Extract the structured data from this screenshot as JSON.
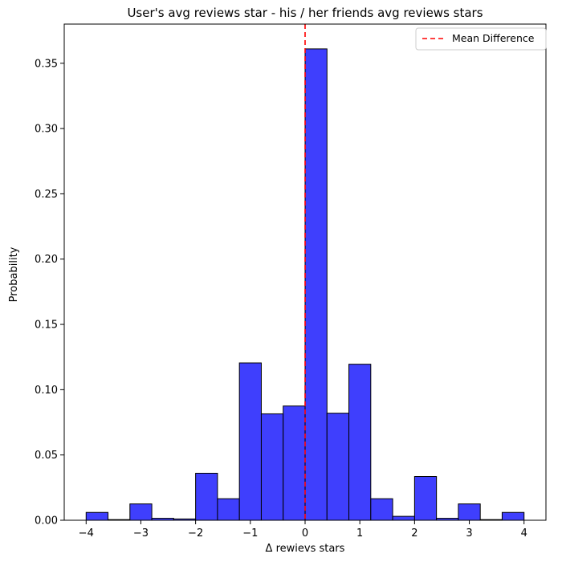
{
  "chart_data": {
    "type": "bar",
    "title": "User's avg reviews star - his / her friends avg reviews stars",
    "xlabel": "Δ rewievs stars",
    "ylabel": "Probability",
    "xlim": [
      -4.4,
      4.4
    ],
    "ylim": [
      0,
      0.38
    ],
    "xticks": [
      -4,
      -3,
      -2,
      -1,
      0,
      1,
      2,
      3,
      4
    ],
    "xtick_labels": [
      "−4",
      "−3",
      "−2",
      "−1",
      "0",
      "1",
      "2",
      "3",
      "4"
    ],
    "yticks": [
      0.0,
      0.05,
      0.1,
      0.15,
      0.2,
      0.25,
      0.3,
      0.35
    ],
    "ytick_labels": [
      "0.00",
      "0.05",
      "0.10",
      "0.15",
      "0.20",
      "0.25",
      "0.30",
      "0.35"
    ],
    "grid": false,
    "bar_color": "#3f3ffd",
    "bar_edge_color": "#000000",
    "bins": [
      {
        "x0": -4.0,
        "x1": -3.6,
        "value": 0.006
      },
      {
        "x0": -3.6,
        "x1": -3.2,
        "value": 0.0005
      },
      {
        "x0": -3.2,
        "x1": -2.8,
        "value": 0.0125
      },
      {
        "x0": -2.8,
        "x1": -2.4,
        "value": 0.0015
      },
      {
        "x0": -2.4,
        "x1": -2.0,
        "value": 0.001
      },
      {
        "x0": -2.0,
        "x1": -1.6,
        "value": 0.036
      },
      {
        "x0": -1.6,
        "x1": -1.2,
        "value": 0.0165
      },
      {
        "x0": -1.2,
        "x1": -0.8,
        "value": 0.1205
      },
      {
        "x0": -0.8,
        "x1": -0.4,
        "value": 0.0815
      },
      {
        "x0": -0.4,
        "x1": 0.0,
        "value": 0.0875
      },
      {
        "x0": 0.0,
        "x1": 0.4,
        "value": 0.361
      },
      {
        "x0": 0.4,
        "x1": 0.8,
        "value": 0.082
      },
      {
        "x0": 0.8,
        "x1": 1.2,
        "value": 0.1195
      },
      {
        "x0": 1.2,
        "x1": 1.6,
        "value": 0.0165
      },
      {
        "x0": 1.6,
        "x1": 2.0,
        "value": 0.003
      },
      {
        "x0": 2.0,
        "x1": 2.4,
        "value": 0.0335
      },
      {
        "x0": 2.4,
        "x1": 2.8,
        "value": 0.0015
      },
      {
        "x0": 2.8,
        "x1": 3.2,
        "value": 0.0125
      },
      {
        "x0": 3.2,
        "x1": 3.6,
        "value": 0.0005
      },
      {
        "x0": 3.6,
        "x1": 4.0,
        "value": 0.006
      }
    ],
    "mean_line": {
      "x": 0.0,
      "color": "#ff0000",
      "style": "dashed",
      "label": "Mean Difference"
    },
    "legend": {
      "placement": "top-right",
      "entries": [
        "Mean Difference"
      ]
    }
  }
}
